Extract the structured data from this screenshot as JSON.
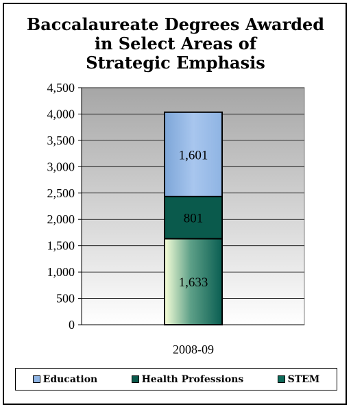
{
  "chart_data": {
    "type": "bar",
    "stacked": true,
    "title_lines": [
      "Baccalaureate Degrees Awarded",
      "in Select Areas of",
      "Strategic Emphasis"
    ],
    "categories": [
      "2008-09"
    ],
    "series": [
      {
        "name": "STEM",
        "values": [
          1633
        ],
        "label": "1,633",
        "color": "#0e6b5a"
      },
      {
        "name": "Health Professions",
        "values": [
          801
        ],
        "label": "801",
        "color": "#0b5a4c"
      },
      {
        "name": "Education",
        "values": [
          1601
        ],
        "label": "1,601",
        "color": "#8fb4e3"
      }
    ],
    "ylim": [
      0,
      4500
    ],
    "yticks": [
      "0",
      "500",
      "1,000",
      "1,500",
      "2,000",
      "2,500",
      "3,000",
      "3,500",
      "4,000",
      "4,500"
    ],
    "grid": true,
    "legend_position": "bottom"
  },
  "legend": [
    {
      "label": "Education",
      "color": "#8fb4e3"
    },
    {
      "label": "Health Professions",
      "color": "#0b5a4c"
    },
    {
      "label": "STEM",
      "color": "#0e6b5a"
    }
  ]
}
